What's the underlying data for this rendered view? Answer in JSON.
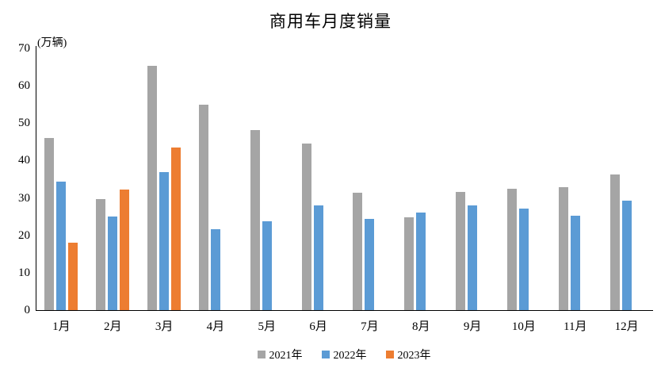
{
  "title": "商用车月度销量",
  "unit_label": "(万辆)",
  "colors": {
    "axis": "#000000",
    "background": "#ffffff",
    "series_2021": "#A5A5A5",
    "series_2022": "#5B9BD5",
    "series_2023": "#ED7D31"
  },
  "chart_data": {
    "type": "bar",
    "title": "商用车月度销量",
    "ylabel": "(万辆)",
    "xlabel": "",
    "categories": [
      "1月",
      "2月",
      "3月",
      "4月",
      "5月",
      "6月",
      "7月",
      "8月",
      "9月",
      "10月",
      "11月",
      "12月"
    ],
    "series": [
      {
        "name": "2021年",
        "color": "#A5A5A5",
        "values": [
          46.0,
          29.8,
          65.4,
          55.0,
          48.2,
          44.6,
          31.4,
          24.8,
          31.7,
          32.4,
          32.9,
          36.3
        ]
      },
      {
        "name": "2022年",
        "color": "#5B9BD5",
        "values": [
          34.4,
          25.0,
          37.0,
          21.6,
          23.8,
          28.0,
          24.4,
          26.0,
          27.9,
          27.2,
          25.3,
          29.2
        ]
      },
      {
        "name": "2023年",
        "color": "#ED7D31",
        "values": [
          18.0,
          32.3,
          43.5,
          null,
          null,
          null,
          null,
          null,
          null,
          null,
          null,
          null
        ]
      }
    ],
    "ylim": [
      0,
      70
    ],
    "yticks": [
      0,
      10,
      20,
      30,
      40,
      50,
      60,
      70
    ],
    "grid": false,
    "legend_position": "bottom"
  }
}
